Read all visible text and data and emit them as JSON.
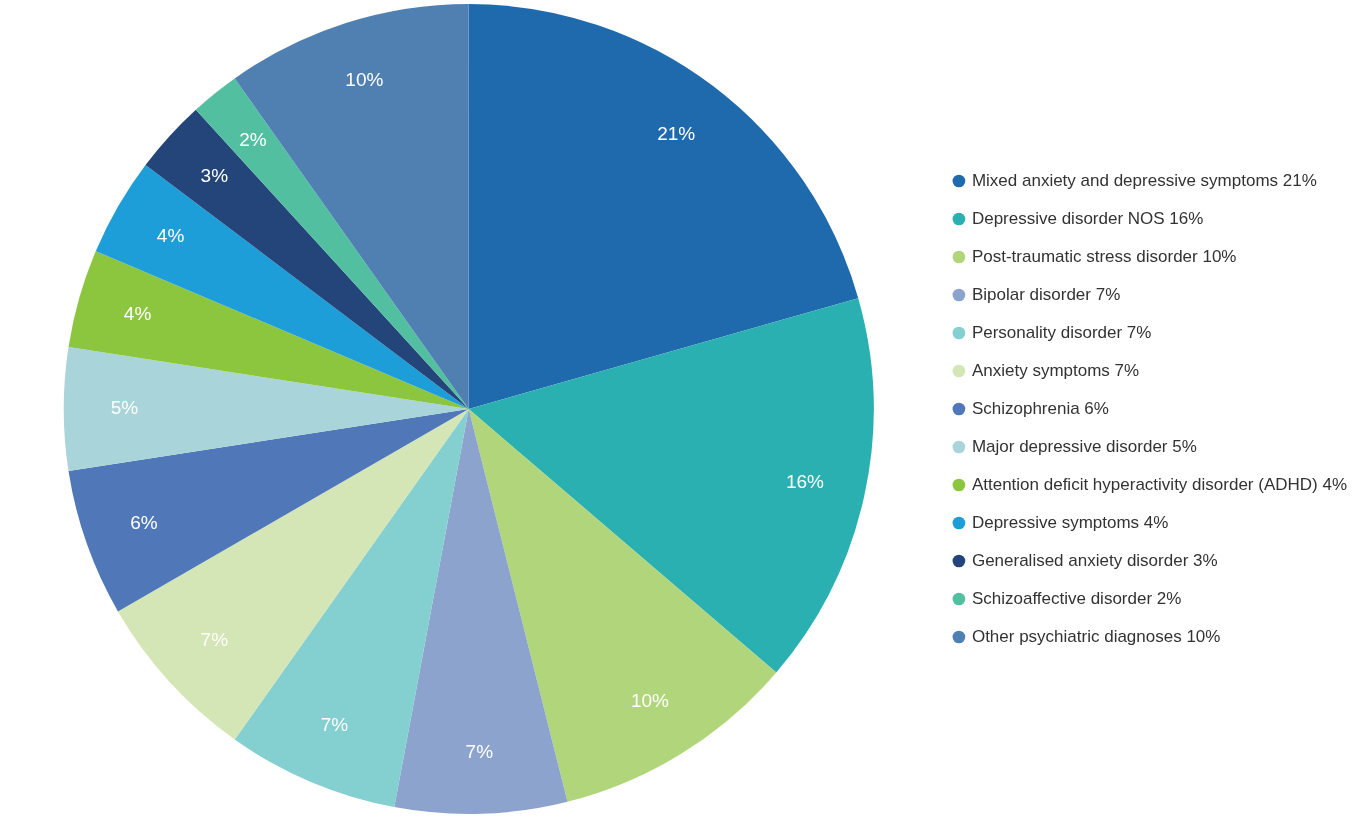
{
  "chart_data": {
    "type": "pie",
    "categories": [
      "Mixed anxiety and depressive symptoms 21%",
      "Depressive disorder NOS 16%",
      "Post-traumatic stress disorder 10%",
      "Bipolar disorder 7%",
      "Personality disorder 7%",
      "Anxiety symptoms 7%",
      "Schizophrenia 6%",
      "Major depressive disorder 5%",
      "Attention deficit hyperactivity disorder (ADHD) 4%",
      "Depressive symptoms 4%",
      "Generalised anxiety disorder 3%",
      "Schizoaffective disorder 2%",
      "Other psychiatric diagnoses 10%"
    ],
    "values": [
      21,
      16,
      10,
      7,
      7,
      7,
      6,
      5,
      4,
      4,
      3,
      2,
      10
    ],
    "value_labels": [
      "21%",
      "16%",
      "10%",
      "7%",
      "7%",
      "7%",
      "6%",
      "5%",
      "4%",
      "4%",
      "3%",
      "2%",
      "10%"
    ],
    "colors": [
      "#1f6aad",
      "#2bb0b1",
      "#b0d57a",
      "#8ca3cd",
      "#84cfd0",
      "#d4e6b5",
      "#5078b8",
      "#a9d5da",
      "#8cc63f",
      "#1d9ed8",
      "#24457a",
      "#52c0a0",
      "#5080b2"
    ],
    "legend": "right"
  }
}
